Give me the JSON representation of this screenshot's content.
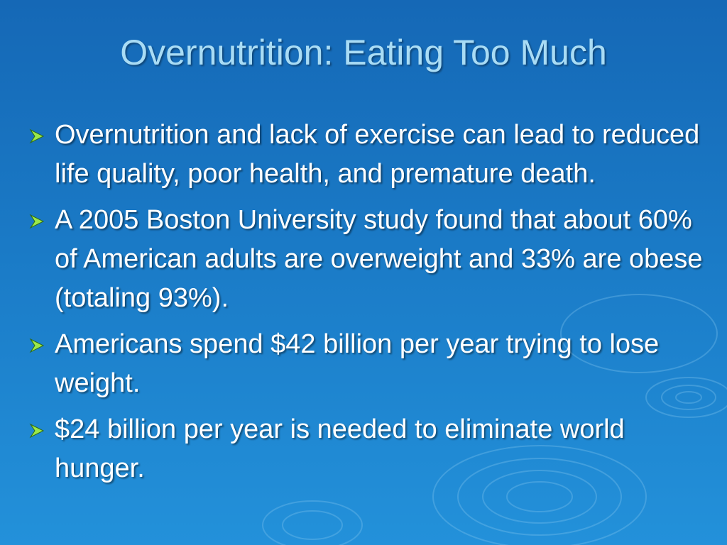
{
  "slide": {
    "title": "Overnutrition: Eating Too Much",
    "bullets": [
      "Overnutrition and lack of exercise can lead to reduced life quality, poor health, and premature death.",
      "A 2005 Boston University study found that about 60% of American adults are overweight and 33% are obese (totaling 93%).",
      "Americans spend $42 billion per year trying to lose weight.",
      "$24 billion per year is needed to eliminate world hunger."
    ]
  },
  "colors": {
    "background": "#1a7ac6",
    "title": "#a9dcf5",
    "text": "#ffffff",
    "bullet_marker": "#9be84a"
  },
  "icons": {
    "bullet_marker": "arrowhead-bullet-icon",
    "background_decoration": "water-ripple-pattern"
  }
}
